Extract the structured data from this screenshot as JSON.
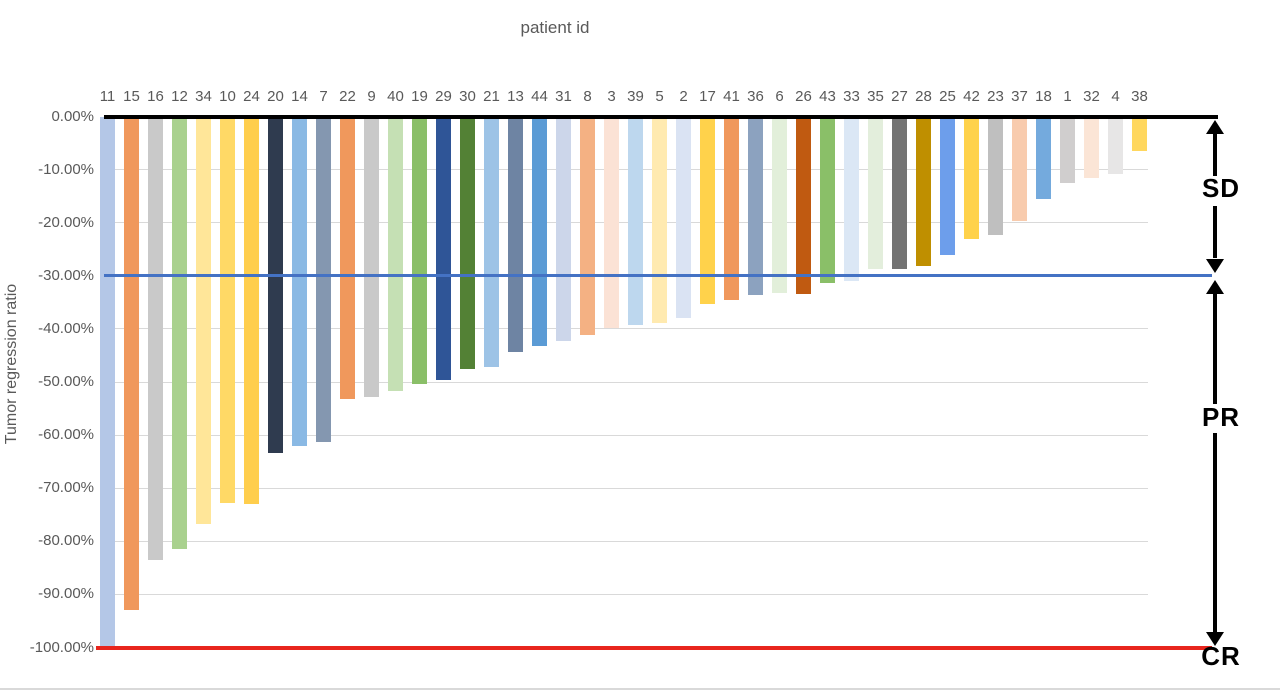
{
  "title": "patient id",
  "y_axis_title": "Tumor regression ratio",
  "annotations": {
    "sd": "SD",
    "pr": "PR",
    "cr": "CR"
  },
  "palette": {
    "zero_line": "#000000",
    "pr_threshold_line": "#4472c4",
    "cr_line": "#e8251d",
    "gridline": "#d9d9d9",
    "axis_text": "#595959"
  },
  "chart_data": {
    "type": "bar",
    "subtype": "waterfall",
    "title": "patient id",
    "xlabel": "patient id",
    "ylabel": "Tumor regression ratio",
    "ylim": [
      -100,
      0
    ],
    "grid": true,
    "y_ticks": [
      "0.00%",
      "-10.00%",
      "-20.00%",
      "-30.00%",
      "-40.00%",
      "-50.00%",
      "-60.00%",
      "-70.00%",
      "-80.00%",
      "-90.00%",
      "-100.00%"
    ],
    "categories": [
      11,
      15,
      16,
      12,
      34,
      10,
      24,
      20,
      14,
      7,
      22,
      9,
      40,
      19,
      29,
      30,
      21,
      13,
      44,
      31,
      8,
      3,
      39,
      5,
      2,
      17,
      41,
      36,
      6,
      26,
      43,
      33,
      35,
      27,
      28,
      25,
      42,
      23,
      37,
      18,
      1,
      32,
      4,
      38
    ],
    "values": [
      -100,
      -93,
      -83.5,
      -81.5,
      -76.7,
      -72.7,
      -73,
      -63.3,
      -62.1,
      -61.3,
      -53.2,
      -52.8,
      -51.7,
      -50.3,
      -49.7,
      -47.6,
      -47.2,
      -44.3,
      -43.3,
      -42.3,
      -41.1,
      -39.8,
      -39.2,
      -38.9,
      -38,
      -35.3,
      -34.5,
      -33.7,
      -33.3,
      -33.4,
      -31.4,
      -30.9,
      -28.8,
      -28.8,
      -28.2,
      -26.1,
      -23,
      -22.3,
      -19.6,
      -15.5,
      -12.5,
      -11.6,
      -10.8,
      -6.5
    ],
    "bar_colors": [
      "#b4c7e7",
      "#f0985c",
      "#c9c9c9",
      "#a9d18e",
      "#ffe699",
      "#ffd966",
      "#ffce4d",
      "#2f3b4f",
      "#8ab9e4",
      "#8497b0",
      "#f0985c",
      "#c9c9c9",
      "#c5e0b4",
      "#8abf68",
      "#2f5597",
      "#538135",
      "#9dc3e6",
      "#6e84a3",
      "#5b9bd5",
      "#ccd6ea",
      "#f4b183",
      "#fbe2d5",
      "#bdd7ee",
      "#ffeab0",
      "#dae3f3",
      "#ffd24b",
      "#f0985c",
      "#8ca2bf",
      "#e2efda",
      "#c05a11",
      "#8abf68",
      "#dbe7f5",
      "#e3eedc",
      "#737373",
      "#bf8f00",
      "#6d9eeb",
      "#ffd24b",
      "#bfbfbf",
      "#f8cbad",
      "#74aadd",
      "#d0cece",
      "#fbe5d6",
      "#e7e6e6",
      "#ffd75e"
    ],
    "reference_lines": [
      {
        "label": "baseline",
        "value": 0,
        "color": "#000000"
      },
      {
        "label": "PR threshold",
        "value": -30,
        "color": "#4472c4"
      },
      {
        "label": "CR",
        "value": -100,
        "color": "#e8251d"
      }
    ],
    "regions": [
      {
        "label": "SD",
        "from": 0,
        "to": -30
      },
      {
        "label": "PR",
        "from": -30,
        "to": -100
      },
      {
        "label": "CR",
        "at": -100
      }
    ],
    "legend": false
  }
}
